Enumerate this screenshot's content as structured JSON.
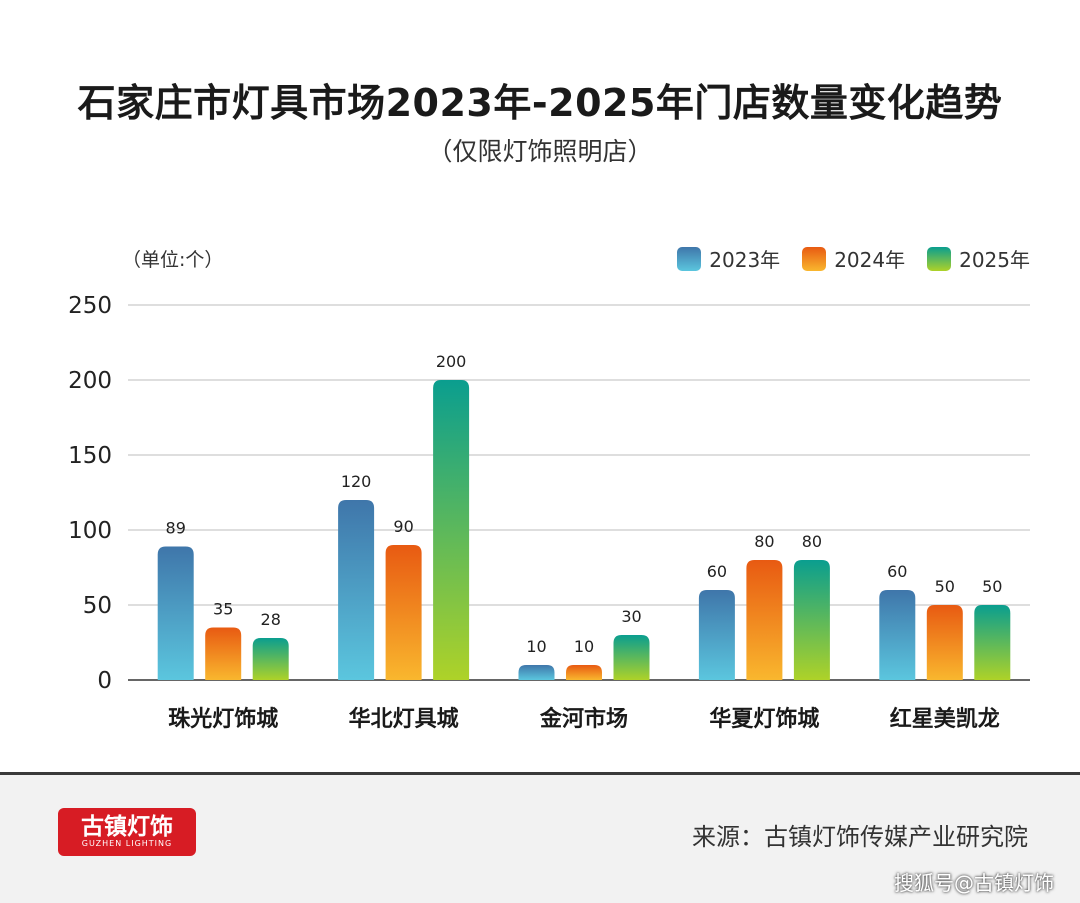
{
  "title": "石家庄市灯具市场2023年-2025年门店数量变化趋势",
  "subtitle": "（仅限灯饰照明店）",
  "unit_label": "（单位:个）",
  "chart_data": {
    "type": "bar",
    "categories": [
      "珠光灯饰城",
      "华北灯具城",
      "金河市场",
      "华夏灯饰城",
      "红星美凯龙"
    ],
    "series": [
      {
        "name": "2023年",
        "values": [
          89,
          120,
          10,
          60,
          60
        ],
        "colors": [
          "#3f76aa",
          "#5bc6de"
        ]
      },
      {
        "name": "2024年",
        "values": [
          35,
          90,
          10,
          80,
          50
        ],
        "colors": [
          "#e85a12",
          "#f9b72e"
        ]
      },
      {
        "name": "2025年",
        "values": [
          28,
          200,
          30,
          80,
          50
        ],
        "colors": [
          "#0a9e8f",
          "#aed228"
        ]
      }
    ],
    "yticks": [
      0,
      50,
      100,
      150,
      200,
      250
    ],
    "ylim": [
      0,
      250
    ],
    "grid": true,
    "legend": "top-right"
  },
  "footer": {
    "logo_text": "古镇灯饰",
    "logo_subtext": "GUZHEN LIGHTING",
    "source": "来源：古镇灯饰传媒产业研究院",
    "watermark": "搜狐号@古镇灯饰"
  }
}
